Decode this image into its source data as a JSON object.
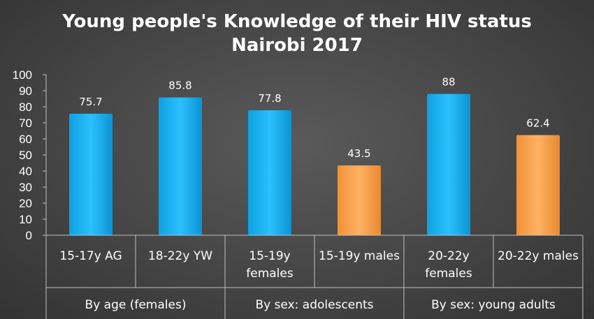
{
  "chart_data": {
    "type": "bar",
    "title": [
      "Young people's Knowledge of their HIV status",
      "Nairobi 2017"
    ],
    "xlabel": "",
    "ylabel": "",
    "ylim": [
      0,
      100
    ],
    "yticks": [
      "0",
      "10",
      "20",
      "30",
      "40",
      "50",
      "60",
      "70",
      "80",
      "90",
      "100"
    ],
    "grid": false,
    "legend": "none",
    "categories": [
      [
        "15-17y AG"
      ],
      [
        "18-22y YW"
      ],
      [
        "15-19y",
        "females"
      ],
      [
        "15-19y males"
      ],
      [
        "20-22y",
        "females"
      ],
      [
        "20-22y males"
      ]
    ],
    "values": [
      75.7,
      85.8,
      77.8,
      43.5,
      88,
      62.4
    ],
    "value_labels": [
      "75.7",
      "85.8",
      "77.8",
      "43.5",
      "88",
      "62.4"
    ],
    "bar_colors": [
      "#1ab0f0",
      "#1ab0f0",
      "#1ab0f0",
      "#f6a04b",
      "#1ab0f0",
      "#f6a04b"
    ],
    "groups": [
      {
        "label": "By age (females)",
        "span": 2
      },
      {
        "label": "By sex: adolescents",
        "span": 2
      },
      {
        "label": "By sex: young adults",
        "span": 2
      }
    ]
  }
}
